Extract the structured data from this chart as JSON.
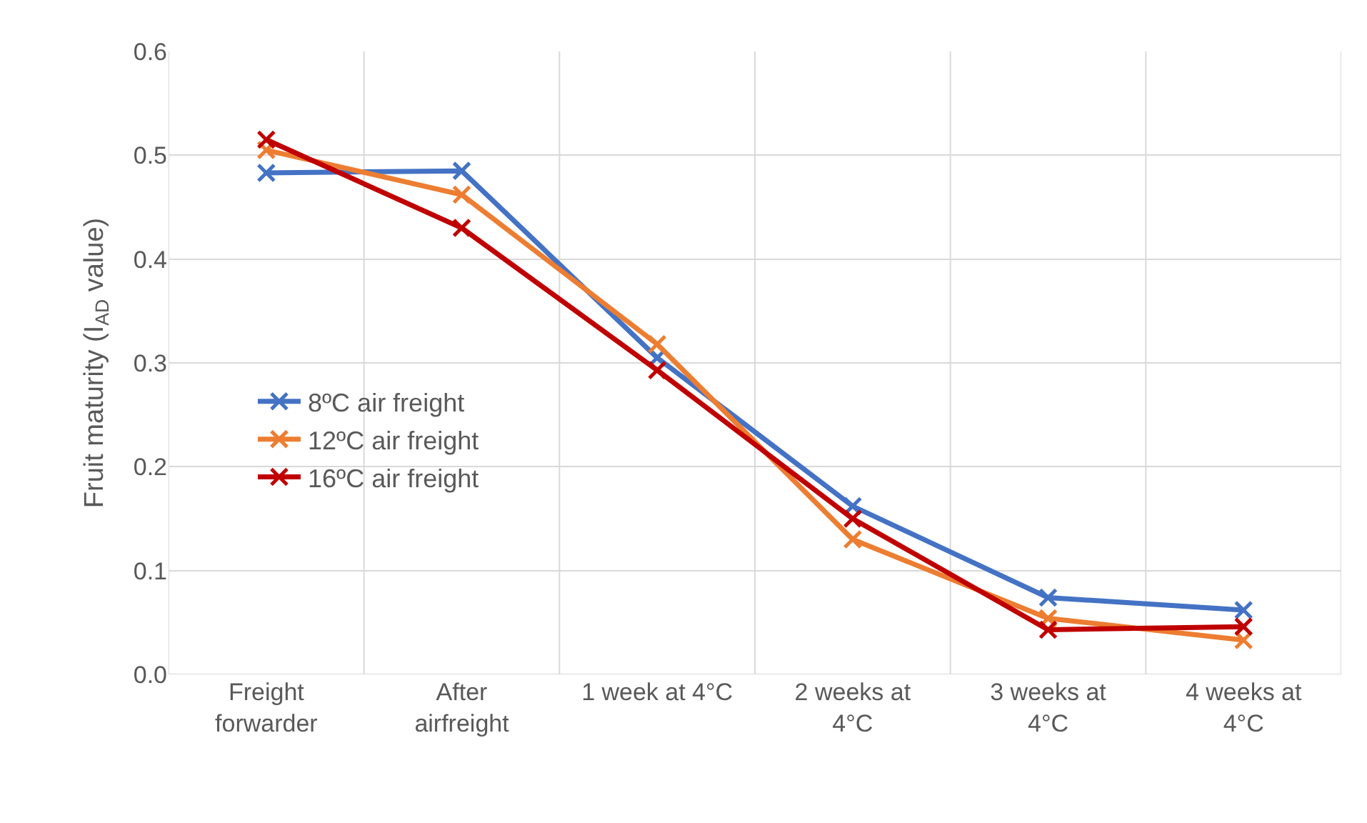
{
  "chart_data": {
    "type": "line",
    "ylabel": "Fruit maturity (I$_{AD}$ value)",
    "categories": [
      "Freight\nforwarder",
      "After\nairfreight",
      "1 week at 4°C",
      "2 weeks at\n4°C",
      "3 weeks at\n4°C",
      "4 weeks at\n4°C"
    ],
    "series": [
      {
        "name": "8ºC air freight",
        "color": "#4472c4",
        "values": [
          0.483,
          0.485,
          0.305,
          0.162,
          0.074,
          0.062
        ]
      },
      {
        "name": "12ºC air freight",
        "color": "#ed7d31",
        "values": [
          0.505,
          0.462,
          0.318,
          0.13,
          0.054,
          0.033
        ]
      },
      {
        "name": "16ºC air freight",
        "color": "#c00000",
        "values": [
          0.515,
          0.43,
          0.293,
          0.15,
          0.043,
          0.046
        ]
      }
    ],
    "ylim": [
      0,
      0.6
    ],
    "yticks": [
      {
        "value": 0,
        "label": "0.0"
      },
      {
        "value": 0.1,
        "label": "0.1"
      },
      {
        "value": 0.2,
        "label": "0.2"
      },
      {
        "value": 0.3,
        "label": "0.3"
      },
      {
        "value": 0.4,
        "label": "0.4"
      },
      {
        "value": 0.5,
        "label": "0.5"
      },
      {
        "value": 0.6,
        "label": "0.6"
      }
    ],
    "grid": true,
    "legend": "left",
    "marker": "cross",
    "line_style": "solid"
  }
}
